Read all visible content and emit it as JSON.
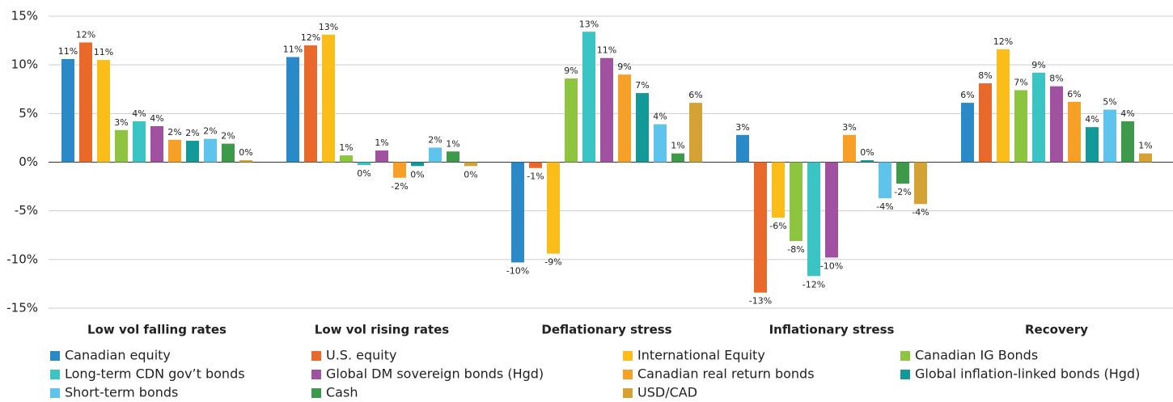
{
  "chart_data": {
    "type": "bar",
    "categories": [
      "Low vol falling rates",
      "Low vol rising rates",
      "Deflationary stress",
      "Inflationary stress",
      "Recovery"
    ],
    "ylim": [
      -15,
      15
    ],
    "yticks": [
      {
        "value": -15,
        "label": "-15%"
      },
      {
        "value": -10,
        "label": "-10%"
      },
      {
        "value": -5,
        "label": "-5%"
      },
      {
        "value": 0,
        "label": "0%"
      },
      {
        "value": 5,
        "label": "5%"
      },
      {
        "value": 10,
        "label": "10%"
      },
      {
        "value": 15,
        "label": "15%"
      }
    ],
    "grid": true,
    "legend": "bottom",
    "series": [
      {
        "name": "Canadian equity",
        "color": "#2a8ac7",
        "values": [
          10.6,
          10.8,
          -10.3,
          2.8,
          6.1
        ],
        "value_labels": [
          "11%",
          "11%",
          "-10%",
          "3%",
          "6%"
        ]
      },
      {
        "name": "U.S. equity",
        "color": "#e8692a",
        "values": [
          12.3,
          12.0,
          -0.6,
          -13.4,
          8.1
        ],
        "value_labels": [
          "12%",
          "12%",
          "-1%",
          "-13%",
          "8%"
        ]
      },
      {
        "name": "International Equity",
        "color": "#fbbd19",
        "values": [
          10.5,
          13.1,
          -9.4,
          -5.7,
          11.6
        ],
        "value_labels": [
          "11%",
          "13%",
          "-9%",
          "-6%",
          "12%"
        ]
      },
      {
        "name": "Canadian IG Bonds",
        "color": "#8dc540",
        "values": [
          3.3,
          0.7,
          8.6,
          -8.1,
          7.4
        ],
        "value_labels": [
          "3%",
          "1%",
          "9%",
          "-8%",
          "7%"
        ]
      },
      {
        "name": "Long-term CDN gov’t bonds",
        "color": "#3bc4c4",
        "values": [
          4.2,
          -0.3,
          13.4,
          -11.7,
          9.2
        ],
        "value_labels": [
          "4%",
          "0%",
          "13%",
          "-12%",
          "9%"
        ]
      },
      {
        "name": "Global DM sovereign bonds (Hgd)",
        "color": "#a052a0",
        "values": [
          3.7,
          1.2,
          10.7,
          -9.8,
          7.8
        ],
        "value_labels": [
          "4%",
          "1%",
          "11%",
          "-10%",
          "8%"
        ]
      },
      {
        "name": "Canadian real return bonds",
        "color": "#f7a028",
        "values": [
          2.3,
          -1.6,
          9.0,
          2.8,
          6.2
        ],
        "value_labels": [
          "2%",
          "-2%",
          "9%",
          "3%",
          "6%"
        ]
      },
      {
        "name": "Global inflation-linked bonds (Hgd)",
        "color": "#139a98",
        "values": [
          2.2,
          -0.4,
          7.1,
          0.2,
          3.6
        ],
        "value_labels": [
          "2%",
          "0%",
          "7%",
          "0%",
          "4%"
        ]
      },
      {
        "name": "Short-term bonds",
        "color": "#5ec4ec",
        "values": [
          2.4,
          1.5,
          3.9,
          -3.7,
          5.4
        ],
        "value_labels": [
          "2%",
          "2%",
          "4%",
          "-4%",
          "5%"
        ]
      },
      {
        "name": "Cash",
        "color": "#3c9a4a",
        "values": [
          1.9,
          1.1,
          0.9,
          -2.2,
          4.2
        ],
        "value_labels": [
          "2%",
          "1%",
          "1%",
          "-2%",
          "4%"
        ]
      },
      {
        "name": "USD/CAD",
        "color": "#d4a235",
        "values": [
          0.2,
          -0.4,
          6.1,
          -4.3,
          0.9
        ],
        "value_labels": [
          "0%",
          "0%",
          "6%",
          "-4%",
          "1%"
        ]
      }
    ]
  }
}
